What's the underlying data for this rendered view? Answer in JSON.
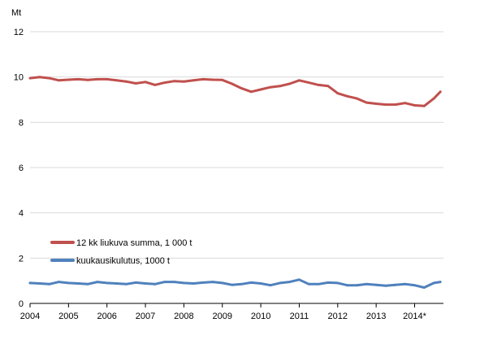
{
  "chart_data": {
    "type": "line",
    "ylabel": "Mt",
    "ylim": [
      0,
      12
    ],
    "yticks": [
      0,
      2,
      4,
      6,
      8,
      10,
      12
    ],
    "xlim": [
      2004,
      2014.75
    ],
    "xticks": [
      {
        "value": 2004,
        "label": "2004"
      },
      {
        "value": 2005,
        "label": "2005"
      },
      {
        "value": 2006,
        "label": "2006"
      },
      {
        "value": 2007,
        "label": "2007"
      },
      {
        "value": 2008,
        "label": "2008"
      },
      {
        "value": 2009,
        "label": "2009"
      },
      {
        "value": 2010,
        "label": "2010"
      },
      {
        "value": 2011,
        "label": "2011"
      },
      {
        "value": 2012,
        "label": "2012"
      },
      {
        "value": 2013,
        "label": "2013"
      },
      {
        "value": 2014,
        "label": "2014*"
      }
    ],
    "grid": true,
    "legend_position": "bottom-left",
    "series": [
      {
        "name": "12 kk liukuva summa,  1 000 t",
        "color": "#c0504d",
        "x": [
          2004.0,
          2004.25,
          2004.5,
          2004.75,
          2005.0,
          2005.25,
          2005.5,
          2005.75,
          2006.0,
          2006.25,
          2006.5,
          2006.75,
          2007.0,
          2007.25,
          2007.5,
          2007.75,
          2008.0,
          2008.25,
          2008.5,
          2008.75,
          2009.0,
          2009.25,
          2009.5,
          2009.75,
          2010.0,
          2010.25,
          2010.5,
          2010.75,
          2011.0,
          2011.25,
          2011.5,
          2011.75,
          2012.0,
          2012.25,
          2012.5,
          2012.75,
          2013.0,
          2013.25,
          2013.5,
          2013.75,
          2014.0,
          2014.25,
          2014.5,
          2014.67
        ],
        "y": [
          9.95,
          10.0,
          9.95,
          9.85,
          9.88,
          9.9,
          9.87,
          9.9,
          9.9,
          9.85,
          9.8,
          9.72,
          9.78,
          9.65,
          9.75,
          9.82,
          9.8,
          9.85,
          9.9,
          9.88,
          9.87,
          9.7,
          9.5,
          9.35,
          9.45,
          9.55,
          9.6,
          9.7,
          9.85,
          9.75,
          9.65,
          9.6,
          9.28,
          9.15,
          9.05,
          8.87,
          8.82,
          8.78,
          8.78,
          8.85,
          8.75,
          8.72,
          9.05,
          9.35
        ]
      },
      {
        "name": "kuukausikulutus, 1000 t",
        "color": "#4f81bd",
        "x": [
          2004.0,
          2004.25,
          2004.5,
          2004.75,
          2005.0,
          2005.25,
          2005.5,
          2005.75,
          2006.0,
          2006.25,
          2006.5,
          2006.75,
          2007.0,
          2007.25,
          2007.5,
          2007.75,
          2008.0,
          2008.25,
          2008.5,
          2008.75,
          2009.0,
          2009.25,
          2009.5,
          2009.75,
          2010.0,
          2010.25,
          2010.5,
          2010.75,
          2011.0,
          2011.25,
          2011.5,
          2011.75,
          2012.0,
          2012.25,
          2012.5,
          2012.75,
          2013.0,
          2013.25,
          2013.5,
          2013.75,
          2014.0,
          2014.25,
          2014.5,
          2014.67
        ],
        "y": [
          0.9,
          0.88,
          0.85,
          0.95,
          0.9,
          0.88,
          0.85,
          0.95,
          0.9,
          0.88,
          0.85,
          0.92,
          0.88,
          0.85,
          0.95,
          0.95,
          0.9,
          0.88,
          0.92,
          0.95,
          0.9,
          0.82,
          0.85,
          0.92,
          0.88,
          0.8,
          0.9,
          0.95,
          1.05,
          0.85,
          0.85,
          0.92,
          0.9,
          0.8,
          0.8,
          0.85,
          0.82,
          0.78,
          0.82,
          0.85,
          0.8,
          0.7,
          0.9,
          0.95
        ]
      }
    ]
  }
}
